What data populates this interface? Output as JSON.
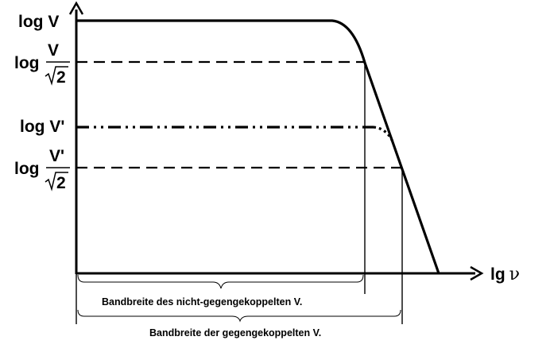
{
  "diagram": {
    "y_axis_label": "log V",
    "x_axis_label_prefix": "lg",
    "x_axis_label_symbol": "ν",
    "level1": {
      "label": "log V",
      "fraction_prefix": "log",
      "numerator": "V",
      "denominator": "2"
    },
    "level2": {
      "label": "log V'",
      "fraction_prefix": "log",
      "numerator": "V'",
      "denominator": "2"
    },
    "bandwidth_open_loop": "Bandbreite des nicht-gegengekoppelten V.",
    "bandwidth_feedback": "Bandbreite der gegengekoppelten V."
  }
}
